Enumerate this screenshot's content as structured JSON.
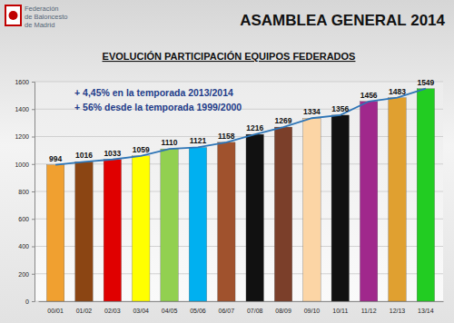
{
  "header": {
    "organization": [
      "Federación",
      "de Baloncesto",
      "de Madrid"
    ],
    "event": "ASAMBLEA GENERAL 2014"
  },
  "chart_data": {
    "type": "bar",
    "title": "EVOLUCIÓN PARTICIPACIÓN EQUIPOS FEDERADOS",
    "annotations": [
      "+ 4,45% en la temporada 2013/2014",
      "+ 56% desde la temporada 1999/2000"
    ],
    "categories": [
      "00/01",
      "01/02",
      "02/03",
      "03/04",
      "04/05",
      "05/06",
      "06/07",
      "07/08",
      "08/09",
      "09/10",
      "10/11",
      "11/12",
      "12/13",
      "13/14"
    ],
    "series": [
      {
        "type": "bar",
        "values": [
          994,
          1016,
          1033,
          1059,
          1110,
          1121,
          1158,
          1216,
          1269,
          1334,
          1356,
          1456,
          1483,
          1549
        ],
        "colors": [
          "#f0a030",
          "#8b4513",
          "#e00000",
          "#ffff00",
          "#92d050",
          "#00b0f0",
          "#a0522d",
          "#111111",
          "#7b3f2a",
          "#fcd5a5",
          "#111111",
          "#a0288c",
          "#e0a030",
          "#22cc22"
        ]
      },
      {
        "type": "line",
        "color": "#2e75b6",
        "values": [
          994,
          1016,
          1033,
          1059,
          1110,
          1121,
          1158,
          1216,
          1269,
          1334,
          1356,
          1456,
          1483,
          1549
        ]
      }
    ],
    "data_labels": true,
    "ylim": [
      0,
      1600
    ],
    "yticks": [
      0,
      200,
      400,
      600,
      800,
      1000,
      1200,
      1400,
      1600
    ],
    "grid": true
  }
}
